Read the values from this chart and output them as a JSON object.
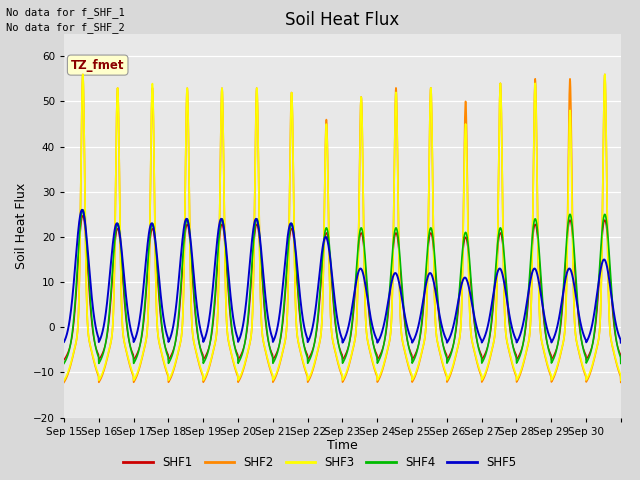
{
  "title": "Soil Heat Flux",
  "ylabel": "Soil Heat Flux",
  "xlabel": "Time",
  "ylim": [
    -20,
    65
  ],
  "yticks": [
    -20,
    -10,
    0,
    10,
    20,
    30,
    40,
    50,
    60
  ],
  "bg_color": "#d9d9d9",
  "plot_bg_color": "#e8e8e8",
  "no_data_text": [
    "No data for f_SHF_1",
    "No data for f_SHF_2"
  ],
  "tz_label": "TZ_fmet",
  "series_colors": {
    "SHF1": "#cc0000",
    "SHF2": "#ff8800",
    "SHF3": "#ffff00",
    "SHF4": "#00bb00",
    "SHF5": "#0000cc"
  },
  "num_days": 16,
  "start_day": 15,
  "shf2_peaks": [
    56,
    53,
    53,
    53,
    53,
    53,
    52,
    46,
    51,
    53,
    53,
    50,
    54,
    55,
    55,
    56
  ],
  "shf3_peaks": [
    56,
    53,
    54,
    53,
    53,
    53,
    52,
    45,
    51,
    52,
    53,
    45,
    54,
    54,
    48,
    56
  ],
  "shf4_peaks": [
    26,
    23,
    23,
    24,
    24,
    24,
    23,
    22,
    22,
    22,
    22,
    21,
    22,
    24,
    25,
    25
  ],
  "shf5_peaks": [
    26,
    23,
    23,
    24,
    24,
    24,
    23,
    20,
    13,
    12,
    12,
    11,
    13,
    13,
    13,
    15
  ]
}
